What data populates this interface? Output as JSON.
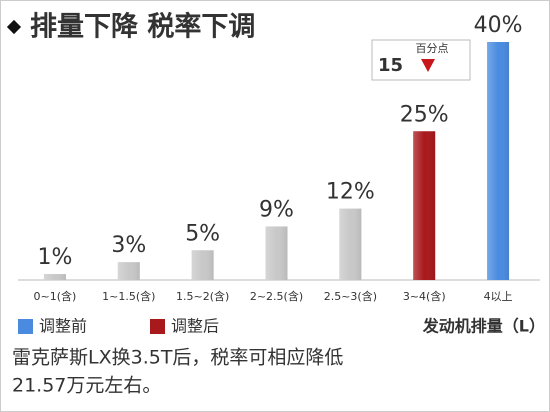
{
  "chart_data": {
    "type": "bar",
    "title": "排量下降 税率下调",
    "categories": [
      "0~1(含)",
      "1~1.5(含)",
      "1.5~2(含)",
      "2~2.5(含)",
      "2.5~3(含)",
      "3~4(含)",
      "4以上"
    ],
    "values": [
      1,
      3,
      5,
      9,
      12,
      25,
      40
    ],
    "value_labels": [
      "1%",
      "3%",
      "5%",
      "9%",
      "12%",
      "25%",
      "40%"
    ],
    "colors": [
      "#c8c8c8",
      "#c8c8c8",
      "#c8c8c8",
      "#c8c8c8",
      "#c8c8c8",
      "#a8191c",
      "#4a8be0"
    ],
    "ylim": [
      0,
      40
    ],
    "legend": [
      {
        "name": "调整前",
        "color": "#4a8be0"
      },
      {
        "name": "调整后",
        "color": "#a8191c"
      }
    ],
    "x_label": "发动机排量（L）",
    "annotation": {
      "value": 15,
      "unit": "百分点"
    },
    "caption": [
      "雷克萨斯LX换3.5T后，税率可相应降低",
      "21.57万元左右。"
    ]
  }
}
